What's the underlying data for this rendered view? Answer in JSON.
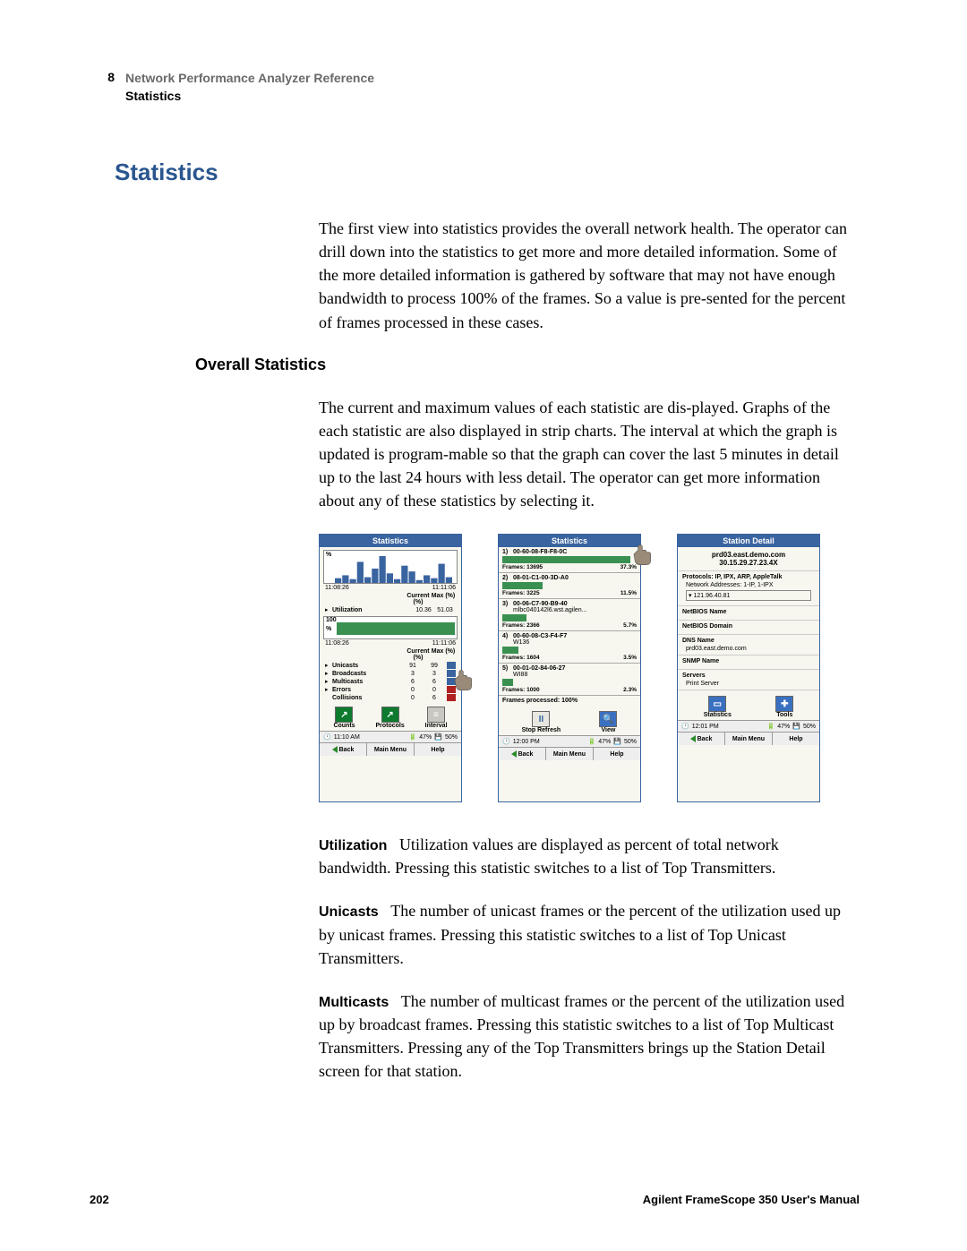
{
  "header": {
    "chapter": "8",
    "line1": "Network Performance Analyzer Reference",
    "line2": "Statistics"
  },
  "section_title": "Statistics",
  "intro_para": "The first view into statistics provides the overall network health. The operator can drill down into the statistics to get more and more detailed information. Some of the more detailed information is gathered by software that may not have enough bandwidth to process 100% of the frames. So a value is pre-sented for the percent of frames processed in these cases.",
  "sub_title": "Overall Statistics",
  "para2": "The current and maximum values of each statistic are dis-played. Graphs of the each statistic are also displayed in strip charts. The interval at which the graph is updated is program-mable so that the graph can cover the last 5 minutes in detail up to the last 24 hours with less detail. The operator can get more information about any of these statistics by selecting it.",
  "defs": [
    {
      "term": "Utilization",
      "text": "Utilization values are displayed as percent of total network bandwidth. Pressing this statistic switches to a list of Top Transmitters."
    },
    {
      "term": "Unicasts",
      "text": "The number of unicast frames or the percent of the utilization used up by unicast frames. Pressing this statistic switches to a list of Top Unicast Transmitters."
    },
    {
      "term": "Multicasts",
      "text": "The number of multicast frames or the percent of the utilization used up by broadcast frames. Pressing this statistic switches to a list of Top Multicast Transmitters. Pressing any of the Top Transmitters brings up the Station Detail screen for that station."
    }
  ],
  "screen1": {
    "title": "Statistics",
    "chart": {
      "ylabel": "%",
      "t_left": "11:08:26",
      "t_right": "11:11:06",
      "bars": [
        5,
        8,
        4,
        22,
        6,
        15,
        28,
        10,
        4,
        18,
        12,
        3,
        8,
        5,
        20,
        6
      ],
      "bar_color": "#3a64a0"
    },
    "cols": {
      "c1": "Current (%)",
      "c2": "Max (%)"
    },
    "util": {
      "name": "Utilization",
      "v1": "10.36",
      "v2": "51.03"
    },
    "chart2": {
      "ylabel": "%",
      "max": "100",
      "t_left": "11:08:26",
      "t_right": "11:11:06"
    },
    "rows": [
      {
        "name": "Unicasts",
        "v1": "91",
        "v2": "99"
      },
      {
        "name": "Broadcasts",
        "v1": "3",
        "v2": "3"
      },
      {
        "name": "Multicasts",
        "v1": "6",
        "v2": "6"
      },
      {
        "name": "Errors",
        "v1": "0",
        "v2": "0",
        "red": true
      },
      {
        "name": "Collisions",
        "v1": "0",
        "v2": "6",
        "red": true,
        "nobullet": true
      }
    ],
    "buttons": [
      {
        "label": "Counts",
        "glyph": "↗",
        "cls": ""
      },
      {
        "label": "Protocols",
        "glyph": "↗",
        "cls": ""
      },
      {
        "label": "Interval",
        "glyph": "≡",
        "cls": "gray"
      }
    ],
    "status_time": "11:10 AM",
    "status_pct": "47%",
    "status_pct2": "50%",
    "bottom": [
      "Back",
      "Main Menu",
      "Help"
    ]
  },
  "screen2": {
    "title": "Statistics",
    "items": [
      {
        "n": "1)",
        "addr": "00-60-08-F8-F8-0C",
        "frames": "Frames: 13695",
        "pct": "37.3%",
        "strip": 95
      },
      {
        "n": "2)",
        "addr": "08-01-C1-00-3D-A0",
        "frames": "Frames: 3225",
        "pct": "11.5%",
        "strip": 30
      },
      {
        "n": "3)",
        "addr": "00-06-C7-90-B9-40",
        "sub": "mlbc040142l6.wst.agilen...",
        "frames": "Frames: 2366",
        "pct": "5.7%",
        "strip": 18
      },
      {
        "n": "4)",
        "addr": "00-60-08-C3-F4-F7",
        "sub": "W136",
        "frames": "Frames: 1604",
        "pct": "3.5%",
        "strip": 12
      },
      {
        "n": "5)",
        "addr": "00-01-02-84-06-27",
        "sub": "WI88",
        "frames": "Frames: 1000",
        "pct": "2.3%",
        "strip": 8
      }
    ],
    "processed": "Frames processed: 100%",
    "buttons": [
      {
        "label": "Stop Refresh",
        "glyph": "II",
        "cls": "pause"
      },
      {
        "label": "View",
        "glyph": "🔍",
        "cls": "blue"
      }
    ],
    "status_time": "12:00 PM",
    "status_pct": "47%",
    "status_pct2": "50%",
    "bottom": [
      "Back",
      "Main Menu",
      "Help"
    ]
  },
  "screen3": {
    "title": "Station Detail",
    "top1": "prd03.east.demo.com",
    "top2": "30.15.29.27.23.4X",
    "blocks": [
      {
        "hdr": "Protocols: IP, IPX, ARP, AppleTalk",
        "sub": "Network Addresses: 1-IP, 1-IPX",
        "val": "121.96.40.81"
      },
      {
        "hdr": "NetBIOS Name"
      },
      {
        "hdr": "NetBIOS Domain"
      },
      {
        "hdr": "DNS Name",
        "sub": "prd03.east.demo.com"
      },
      {
        "hdr": "SNMP Name"
      },
      {
        "hdr": "Servers",
        "sub": "Print Server"
      }
    ],
    "buttons": [
      {
        "label": "Statistics",
        "glyph": "▭",
        "cls": "blue"
      },
      {
        "label": "Tools",
        "glyph": "✚",
        "cls": "blue"
      }
    ],
    "status_time": "12:01 PM",
    "status_pct": "47%",
    "status_pct2": "50%",
    "bottom": [
      "Back",
      "Main Menu",
      "Help"
    ]
  },
  "footer": {
    "page": "202",
    "manual": "Agilent FrameScope 350 User's Manual"
  },
  "colors": {
    "blue": "#3a64a0",
    "heading": "#2a568f",
    "green": "#3a9050",
    "red": "#b02020"
  }
}
